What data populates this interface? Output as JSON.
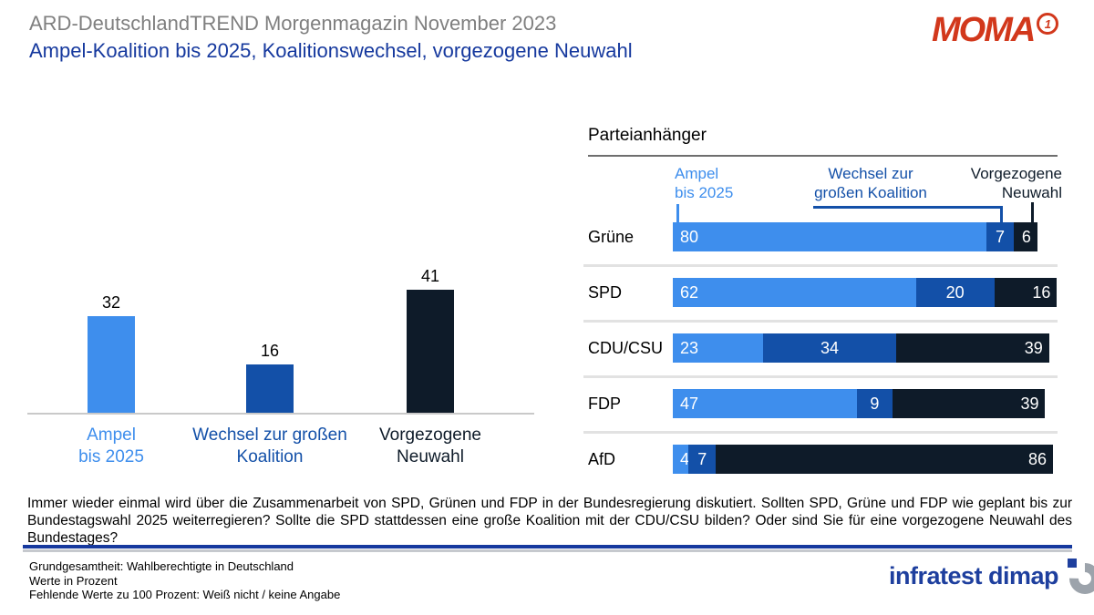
{
  "header": {
    "supertitle": "ARD-DeutschlandTREND Morgenmagazin November 2023",
    "title": "Ampel-Koalition bis 2025, Koalitionswechsel, vorgezogene Neuwahl",
    "moma_text": "MOMA",
    "moma_badge": "1"
  },
  "colors": {
    "ampel": "#3E8EED",
    "wechsel": "#1350A8",
    "neuwahl": "#0E1B29",
    "title_blue": "#16399E",
    "supertitle_gray": "#7F7F7F",
    "moma_red": "#D2381C",
    "logo_blue": "#1E3F9E",
    "divider_gray": "#6E6E6E",
    "sep_gray": "#E2E2E2",
    "baseline_gray": "#C9C9C9",
    "foot_gray": "#C6C9CE"
  },
  "chart_data": [
    {
      "type": "bar",
      "categories": [
        "Ampel bis 2025",
        "Wechsel zur großen Koalition",
        "Vorgezogene Neuwahl"
      ],
      "values": [
        32,
        16,
        41
      ],
      "unit": "Prozent",
      "ylim": [
        0,
        45
      ],
      "bar_colors": [
        "#3E8EED",
        "#1350A8",
        "#0E1B29"
      ],
      "grid": false,
      "data_labels": "above bars"
    },
    {
      "type": "bar",
      "orientation": "horizontal",
      "stacked": true,
      "title": "Parteianhänger",
      "categories": [
        "Grüne",
        "SPD",
        "CDU/CSU",
        "FDP",
        "AfD"
      ],
      "series": [
        {
          "name": "Ampel bis 2025",
          "color": "#3E8EED",
          "values": [
            80,
            62,
            23,
            47,
            4
          ]
        },
        {
          "name": "Wechsel zur großen Koalition",
          "color": "#1350A8",
          "values": [
            7,
            20,
            34,
            9,
            7
          ]
        },
        {
          "name": "Vorgezogene Neuwahl",
          "color": "#0E1B29",
          "values": [
            6,
            16,
            39,
            39,
            86
          ]
        }
      ],
      "xlim": [
        0,
        100
      ],
      "unit": "Prozent",
      "legend_position": "top",
      "data_labels": "inside segments"
    }
  ],
  "left_chart": {
    "labels": [
      {
        "line1": "Ampel",
        "line2": "bis 2025"
      },
      {
        "line1": "Wechsel zur großen",
        "line2": "Koalition"
      },
      {
        "line1": "Vorgezogene",
        "line2": "Neuwahl"
      }
    ]
  },
  "right_chart": {
    "legend": [
      {
        "line1": "Ampel",
        "line2": "bis 2025"
      },
      {
        "line1": "Wechsel zur",
        "line2": "großen Koalition"
      },
      {
        "line1": "Vorgezogene",
        "line2": "Neuwahl"
      }
    ]
  },
  "question": "Immer wieder einmal wird über die Zusammenarbeit von SPD, Grünen und FDP in der Bundesregierung diskutiert. Sollten SPD, Grüne und FDP wie geplant bis zur Bundestagswahl 2025 weiterregieren? Sollte die SPD stattdessen eine große Koalition mit der CDU/CSU bilden? Oder sind Sie für eine vorgezogene Neuwahl des Bundestages?",
  "footer": {
    "lines": [
      "Grundgesamtheit: Wahlberechtigte in Deutschland",
      "Werte in Prozent",
      "Fehlende Werte zu 100 Prozent: Weiß nicht / keine Angabe"
    ],
    "brand": "infratest dimap"
  }
}
